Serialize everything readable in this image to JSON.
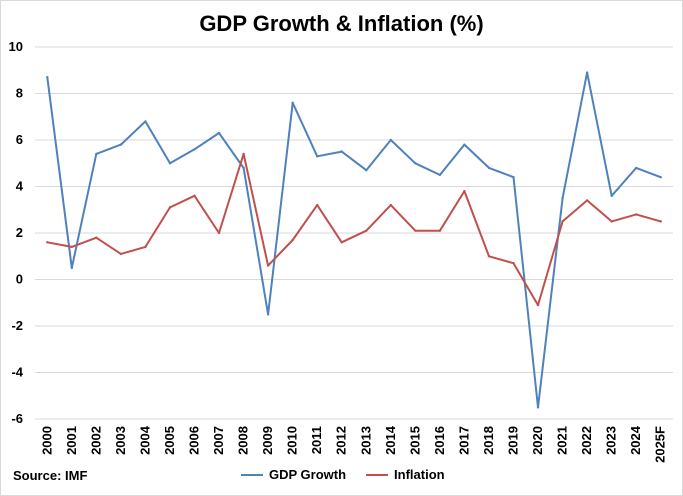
{
  "chart_data": {
    "type": "line",
    "title": "GDP Growth & Inflation (%)",
    "xlabel": "",
    "ylabel": "",
    "ylim": [
      -6,
      10
    ],
    "yticks": [
      -6,
      -4,
      -2,
      0,
      2,
      4,
      6,
      8,
      10
    ],
    "grid": true,
    "legend_position": "bottom",
    "categories": [
      "2000",
      "2001",
      "2002",
      "2003",
      "2004",
      "2005",
      "2006",
      "2007",
      "2008",
      "2009",
      "2010",
      "2011",
      "2012",
      "2013",
      "2014",
      "2015",
      "2016",
      "2017",
      "2018",
      "2019",
      "2020",
      "2021",
      "2022",
      "2023",
      "2024",
      "2025F"
    ],
    "series": [
      {
        "name": "GDP Growth",
        "color": "#4f81bd",
        "values": [
          8.7,
          0.5,
          5.4,
          5.8,
          6.8,
          5.0,
          5.6,
          6.3,
          4.8,
          -1.5,
          7.6,
          5.3,
          5.5,
          4.7,
          6.0,
          5.0,
          4.5,
          5.8,
          4.8,
          4.4,
          -5.5,
          3.5,
          8.9,
          3.6,
          4.8,
          4.4
        ]
      },
      {
        "name": "Inflation",
        "color": "#c0504d",
        "values": [
          1.6,
          1.4,
          1.8,
          1.1,
          1.4,
          3.1,
          3.6,
          2.0,
          5.4,
          0.6,
          1.7,
          3.2,
          1.6,
          2.1,
          3.2,
          2.1,
          2.1,
          3.8,
          1.0,
          0.7,
          -1.1,
          2.5,
          3.4,
          2.5,
          2.8,
          2.5
        ]
      }
    ]
  },
  "source_note": "Source: IMF"
}
